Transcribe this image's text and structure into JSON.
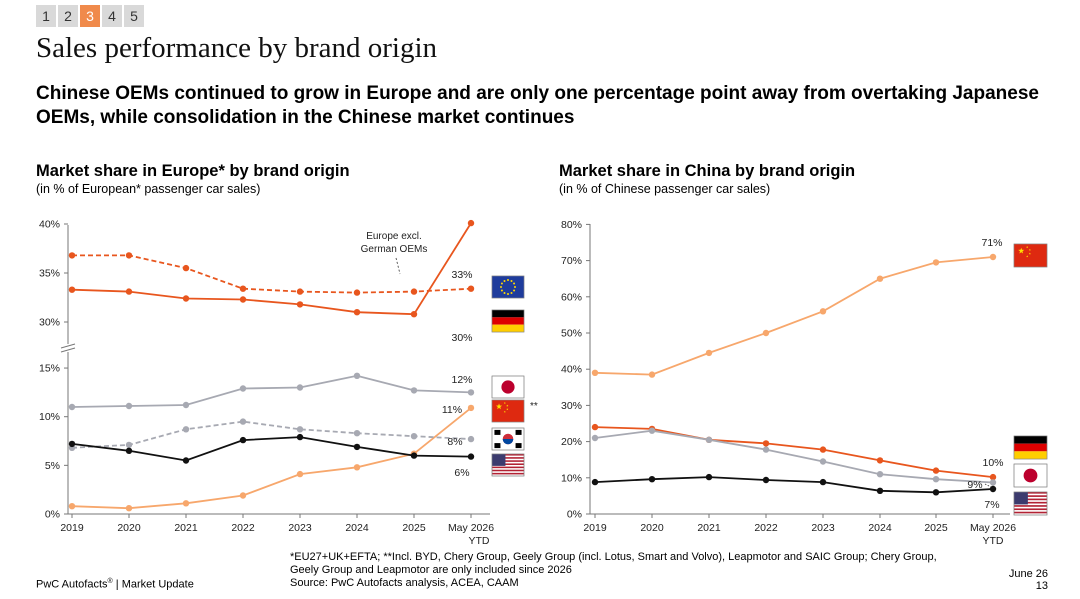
{
  "pager": {
    "pages": [
      "1",
      "2",
      "3",
      "4",
      "5"
    ],
    "active": 2
  },
  "title": "Sales performance by brand origin",
  "subtitle": "Chinese OEMs continued to grow in Europe and are only one percentage point away from overtaking Japanese OEMs, while consolidation in the Chinese market continues",
  "chart_data": [
    {
      "type": "line",
      "title": "Market share in Europe* by brand origin",
      "subtitle": "(in % of European* passenger car sales)",
      "categories": [
        "2019",
        "2020",
        "2021",
        "2022",
        "2023",
        "2024",
        "2025",
        "May 2026 YTD"
      ],
      "y_ticks": [
        "0%",
        "5%",
        "10%",
        "15%",
        "30%",
        "35%",
        "40%"
      ],
      "axis_break": "between 15% and 30%",
      "annotation": "Europe excl. German OEMs",
      "series": [
        {
          "name": "Europe excl. German OEMs",
          "flag": "EU",
          "color": "#e8561e",
          "dashed": true,
          "values": [
            36.8,
            36.8,
            35.5,
            33.4,
            33.1,
            33.0,
            33.1,
            33.4
          ],
          "end_label": "33%"
        },
        {
          "name": "Germany",
          "flag": "DE",
          "color": "#e8561e",
          "dashed": false,
          "values": [
            33.3,
            33.1,
            32.4,
            32.3,
            31.8,
            31.0,
            30.8,
            29.9
          ],
          "end_label": "30%"
        },
        {
          "name": "Japan",
          "flag": "JP",
          "color": "#a7a9b2",
          "dashed": false,
          "values": [
            11.0,
            11.1,
            11.2,
            12.9,
            13.0,
            14.2,
            12.7,
            12.5
          ],
          "end_label": "12%"
        },
        {
          "name": "China",
          "flag": "CN",
          "flag_note": "**",
          "color": "#f7a76c",
          "dashed": false,
          "values": [
            0.8,
            0.6,
            1.1,
            1.9,
            4.1,
            4.8,
            6.2,
            10.9
          ],
          "end_label": "11%"
        },
        {
          "name": "Korea",
          "flag": "KR",
          "color": "#a7a9b2",
          "dashed": true,
          "values": [
            6.8,
            7.1,
            8.7,
            9.5,
            8.7,
            8.3,
            8.0,
            7.7
          ],
          "end_label": "8%"
        },
        {
          "name": "USA",
          "flag": "US",
          "color": "#111111",
          "dashed": false,
          "values": [
            7.2,
            6.5,
            5.5,
            7.6,
            7.9,
            6.9,
            6.0,
            5.9
          ],
          "end_label": "6%"
        }
      ]
    },
    {
      "type": "line",
      "title": "Market share in China by brand origin",
      "subtitle": "(in % of Chinese passenger car sales)",
      "categories": [
        "2019",
        "2020",
        "2021",
        "2022",
        "2023",
        "2024",
        "2025",
        "May 2026 YTD"
      ],
      "y_ticks": [
        "0%",
        "10%",
        "20%",
        "30%",
        "40%",
        "50%",
        "60%",
        "70%",
        "80%"
      ],
      "series": [
        {
          "name": "China",
          "flag": "CN",
          "color": "#f7a76c",
          "values": [
            39.0,
            38.5,
            44.5,
            50.0,
            56.0,
            65.0,
            69.5,
            71.0
          ],
          "end_label": "71%"
        },
        {
          "name": "Germany",
          "flag": "DE",
          "color": "#e8561e",
          "values": [
            24.0,
            23.5,
            20.5,
            19.5,
            17.8,
            14.8,
            12.0,
            10.2
          ],
          "end_label": "10%"
        },
        {
          "name": "Japan",
          "flag": "JP",
          "color": "#a7a9b2",
          "values": [
            21.0,
            23.0,
            20.5,
            17.8,
            14.5,
            11.0,
            9.6,
            8.7
          ],
          "end_label": "9%"
        },
        {
          "name": "USA",
          "flag": "US",
          "color": "#111111",
          "values": [
            8.8,
            9.6,
            10.2,
            9.4,
            8.8,
            6.4,
            6.0,
            6.9
          ],
          "end_label": "7%"
        }
      ]
    }
  ],
  "footnote": {
    "line1": "*EU27+UK+EFTA; **Incl. BYD, Chery Group, Geely Group (incl. Lotus, Smart and Volvo), Leapmotor and SAIC Group; Chery Group,",
    "line2": "Geely Group and Leapmotor are only included since 2026",
    "line3": "Source: PwC Autofacts analysis, ACEA, CAAM"
  },
  "brand": {
    "name": "PwC Autofacts",
    "mark": "®",
    "section": " | Market Update"
  },
  "date": {
    "month": "June 26",
    "page": "13"
  }
}
